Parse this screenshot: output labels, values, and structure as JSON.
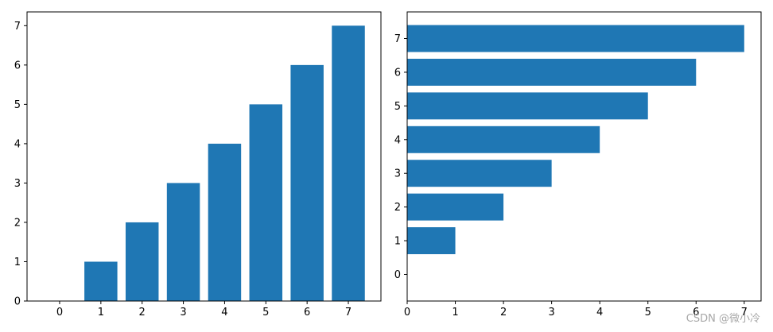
{
  "chart_data": [
    {
      "type": "bar",
      "orientation": "vertical",
      "categories": [
        "0",
        "1",
        "2",
        "3",
        "4",
        "5",
        "6",
        "7"
      ],
      "values": [
        0,
        1,
        2,
        3,
        4,
        5,
        6,
        7
      ],
      "x_ticks": [
        "0",
        "1",
        "2",
        "3",
        "4",
        "5",
        "6",
        "7"
      ],
      "y_ticks": [
        "0",
        "1",
        "2",
        "3",
        "4",
        "5",
        "6",
        "7"
      ],
      "ylim": [
        0,
        7.35
      ],
      "bar_color": "#1f77b4",
      "grid": false
    },
    {
      "type": "bar",
      "orientation": "horizontal",
      "categories": [
        "0",
        "1",
        "2",
        "3",
        "4",
        "5",
        "6",
        "7"
      ],
      "values": [
        0,
        1,
        2,
        3,
        4,
        5,
        6,
        7
      ],
      "x_ticks": [
        "0",
        "1",
        "2",
        "3",
        "4",
        "5",
        "6",
        "7"
      ],
      "y_ticks": [
        "0",
        "1",
        "2",
        "3",
        "4",
        "5",
        "6",
        "7"
      ],
      "xlim": [
        0,
        7.35
      ],
      "bar_color": "#1f77b4",
      "grid": false
    }
  ],
  "watermark": "CSDN @微小冷"
}
